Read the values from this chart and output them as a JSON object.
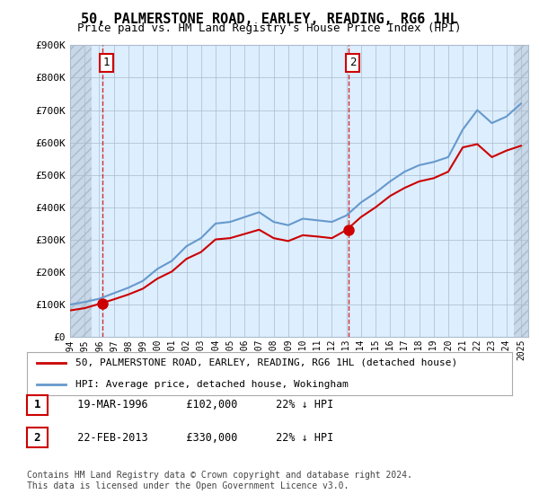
{
  "title": "50, PALMERSTONE ROAD, EARLEY, READING, RG6 1HL",
  "subtitle": "Price paid vs. HM Land Registry's House Price Index (HPI)",
  "ylabel": "",
  "xlabel": "",
  "ylim": [
    0,
    900000
  ],
  "yticks": [
    0,
    100000,
    200000,
    300000,
    400000,
    500000,
    600000,
    700000,
    800000,
    900000
  ],
  "ytick_labels": [
    "£0",
    "£100K",
    "£200K",
    "£300K",
    "£400K",
    "£500K",
    "£600K",
    "£700K",
    "£800K",
    "£900K"
  ],
  "xlim_start": 1994.0,
  "xlim_end": 2025.5,
  "bg_color": "#ddeeff",
  "plot_bg_color": "#ddeeff",
  "hatch_color": "#c0cce0",
  "grid_color": "#aabbcc",
  "red_line_color": "#cc0000",
  "blue_line_color": "#6699cc",
  "sale1_x": 1996.21,
  "sale1_y": 102000,
  "sale2_x": 2013.13,
  "sale2_y": 330000,
  "annotation1_label": "1",
  "annotation2_label": "2",
  "legend_line1": "50, PALMERSTONE ROAD, EARLEY, READING, RG6 1HL (detached house)",
  "legend_line2": "HPI: Average price, detached house, Wokingham",
  "table_row1": [
    "1",
    "19-MAR-1996",
    "£102,000",
    "22% ↓ HPI"
  ],
  "table_row2": [
    "2",
    "22-FEB-2013",
    "£330,000",
    "22% ↓ HPI"
  ],
  "footnote": "Contains HM Land Registry data © Crown copyright and database right 2024.\nThis data is licensed under the Open Government Licence v3.0.",
  "hpi_years": [
    1994,
    1995,
    1996,
    1997,
    1998,
    1999,
    2000,
    2001,
    2002,
    2003,
    2004,
    2005,
    2006,
    2007,
    2008,
    2009,
    2010,
    2011,
    2012,
    2013,
    2014,
    2015,
    2016,
    2017,
    2018,
    2019,
    2020,
    2021,
    2022,
    2023,
    2024,
    2025
  ],
  "hpi_values": [
    100000,
    108000,
    118000,
    135000,
    152000,
    173000,
    210000,
    235000,
    280000,
    305000,
    350000,
    355000,
    370000,
    385000,
    355000,
    345000,
    365000,
    360000,
    355000,
    375000,
    415000,
    445000,
    480000,
    510000,
    530000,
    540000,
    555000,
    640000,
    700000,
    660000,
    680000,
    720000
  ],
  "price_years": [
    1994,
    1995,
    1996,
    1997,
    1998,
    1999,
    2000,
    2001,
    2002,
    2003,
    2004,
    2005,
    2006,
    2007,
    2008,
    2009,
    2010,
    2011,
    2012,
    2013,
    2014,
    2015,
    2016,
    2017,
    2018,
    2019,
    2020,
    2021,
    2022,
    2023,
    2024,
    2025
  ],
  "price_values": [
    82000,
    89000,
    102000,
    116000,
    131000,
    149000,
    180000,
    202000,
    241000,
    262000,
    301000,
    305000,
    318000,
    331000,
    305000,
    296000,
    314000,
    310000,
    305000,
    330000,
    370000,
    400000,
    435000,
    460000,
    480000,
    490000,
    510000,
    585000,
    595000,
    555000,
    575000,
    590000
  ]
}
